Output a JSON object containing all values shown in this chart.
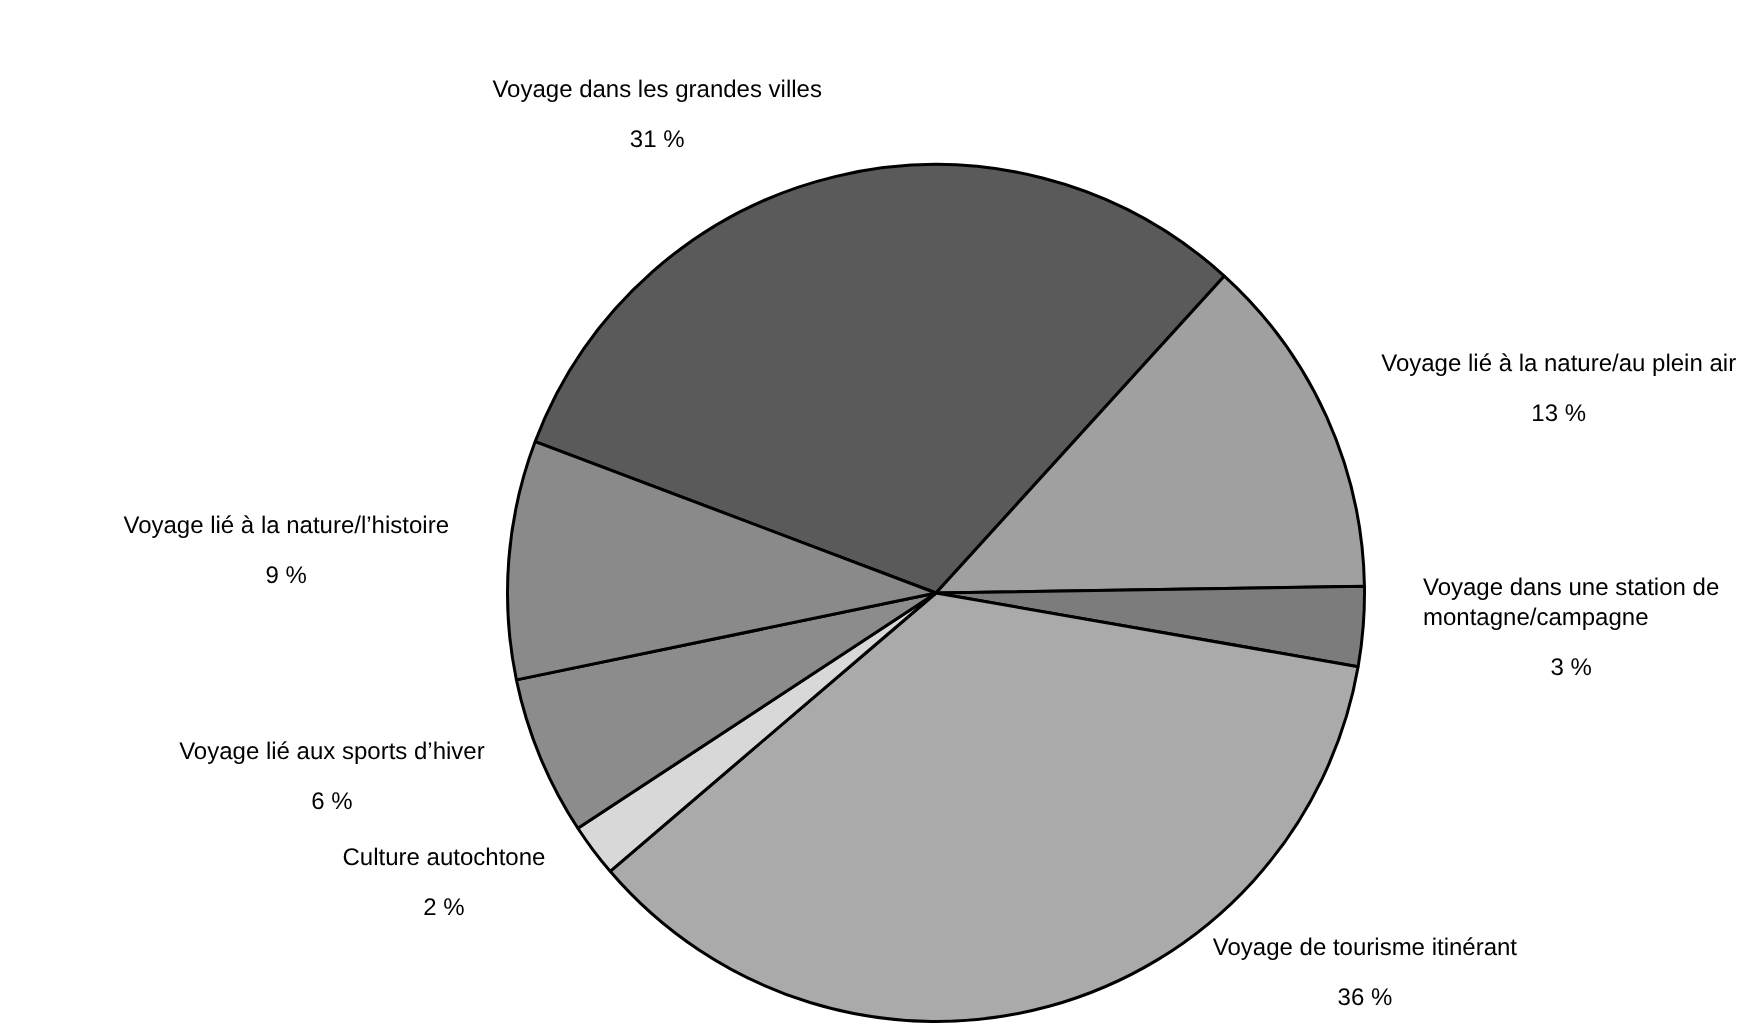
{
  "chart_data": {
    "type": "pie",
    "categories": [
      "Voyage dans les grandes villes",
      "Voyage lié à la nature/au plein air",
      "Voyage dans une station de montagne/campagne",
      "Voyage de tourisme itinérant",
      "Culture autochtone",
      "Voyage lié aux sports d’hiver",
      "Voyage lié à la nature/l’histoire"
    ],
    "values": [
      31,
      13,
      3,
      36,
      2,
      6,
      9
    ],
    "value_labels": [
      "31 %",
      "13 %",
      "3 %",
      "36 %",
      "2 %",
      "6 %",
      "9 %"
    ],
    "colors": [
      "#5a5a5a",
      "#a0a0a0",
      "#7c7c7c",
      "#aaaaaa",
      "#d8d8d8",
      "#8c8c8c",
      "#8a8a8a"
    ],
    "legend": false
  }
}
